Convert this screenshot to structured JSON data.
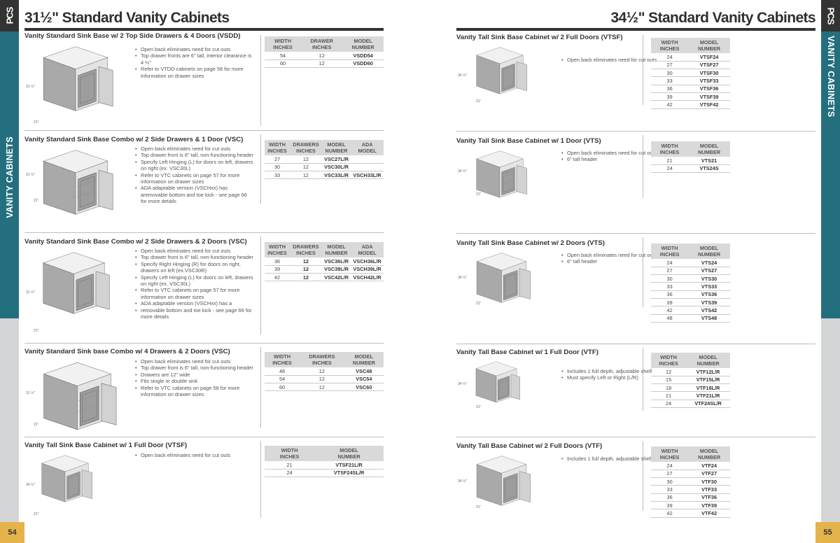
{
  "sidebar": {
    "logo": "PCS",
    "section": "VANITY CABINETS"
  },
  "left_page": {
    "title": "31½\" Standard Vanity Cabinets",
    "page_number": "54",
    "sections": [
      {
        "title": "Vanity Standard Sink Base w/ 2 Top Side Drawers & 4 Doors (VSDD)",
        "height_label": "31 ½\"",
        "depth_label": "21\"",
        "bullets": [
          "Open back eliminates need for cut outs",
          "Top drawer fronts are 6\" tall, interior clearance is 4 ¼\"",
          "Refer to VTDD cabinets on page 58 for more information on drawer sizes"
        ],
        "headers": [
          "WIDTH\nINCHES",
          "DRAWER\nINCHES",
          "MODEL\nNUMBER"
        ],
        "rows": [
          [
            "54",
            "12",
            "VSDD54"
          ],
          [
            "60",
            "12",
            "VSDD60"
          ]
        ]
      },
      {
        "title": "Vanity Standard Sink Base Combo w/ 2 Side Drawers & 1 Door (VSC)",
        "height_label": "31 ½\"",
        "depth_label": "21\"",
        "bullets": [
          "Open back eliminates need for cut outs",
          "Top drawer front is 6\" tall, non-functioning header",
          "Specify Left Hinging (L) for doors on left, drawers on right (ex. VSC30L)",
          "Refer to VTC cabinets on page 57 for more information on drawer sizes",
          "ADA adaptable version (VSCHxx) has aremovable bottom and toe kick - see page 66 for more details"
        ],
        "headers": [
          "WIDTH\nINCHES",
          "DRAWERS\nINCHES",
          "MODEL\nNUMBER",
          "ADA\nMODEL"
        ],
        "rows": [
          [
            "27",
            "12",
            "VSC27L/R",
            ""
          ],
          [
            "30",
            "12",
            "VSC30L/R",
            ""
          ],
          [
            "33",
            "12",
            "VSC33L/R",
            "VSCH33L/R"
          ]
        ]
      },
      {
        "title": "Vanity Standard Sink Base Combo w/ 2 Side Drawers & 2 Doors (VSC)",
        "height_label": "31 ½\"",
        "depth_label": "21\"",
        "bullets": [
          "Open back eliminates need for cut outs",
          "Top drawer front is 6\" tall, non-functioning header",
          "Specify Right Hinging (R) for doors on right, drawers on left (ex.VSC30R)",
          "Specify Left Hinging (L) for doors on left, drawers on right (ex. VSC30L)",
          "Refer to VTC cabinets on page 57 for more information on drawer sizes",
          "ADA adaptable version (VSCHxx) has a",
          "removable bottom and toe kick - see page 66 for more details"
        ],
        "headers": [
          "WIDTH\nINCHES",
          "DRAWERS\nINCHES",
          "MODEL\nNUMBER",
          "ADA\nMODEL"
        ],
        "rows": [
          [
            "36",
            "12",
            "VSC36L/R",
            "VSCH36L/R"
          ],
          [
            "39",
            "12",
            "VSC39L/R",
            "VSCH39L/R"
          ],
          [
            "42",
            "12",
            "VSC42L/R",
            "VSCH42L/R"
          ]
        ]
      },
      {
        "title": "Vanity Standard Sink base Combo w/ 4 Drawers & 2 Doors (VSC)",
        "height_label": "31 ½\"",
        "depth_label": "21\"",
        "bullets": [
          "Open back eliminates need for cut outs",
          "Top drawer front is 6\" tall, non-functioning header",
          "Drawers are 12\" wide",
          "Fits single or double sink",
          "Refer to VTC cabinets on page 58 for more information on drawer sizes"
        ],
        "headers": [
          "WIDTH\nINCHES",
          "DRAWERS\nINCHES",
          "MODEL\nNUMBER"
        ],
        "rows": [
          [
            "48",
            "12",
            "VSC48"
          ],
          [
            "54",
            "12",
            "VSC54"
          ],
          [
            "60",
            "12",
            "VSC60"
          ]
        ]
      },
      {
        "title": "Vanity Tall Sink Base Cabinet w/ 1 Full Door (VTSF)",
        "height_label": "34 ½\"",
        "depth_label": "21\"",
        "bullets": [
          "Open back eliminates need for cut outs"
        ],
        "headers": [
          "WIDTH\nINCHES",
          "MODEL\nNUMBER"
        ],
        "rows": [
          [
            "21",
            "VTSF21L/R"
          ],
          [
            "24",
            "VTSF24SL/R"
          ]
        ]
      }
    ]
  },
  "right_page": {
    "title": "34½\" Standard Vanity Cabinets",
    "page_number": "55",
    "sections": [
      {
        "title": "Vanity Tall Sink Base Cabinet w/ 2 Full Doors (VTSF)",
        "height_label": "34 ½\"",
        "depth_label": "21\"",
        "bullets": [
          "Open back eliminates need for cut outs"
        ],
        "headers": [
          "WIDTH\nINCHES",
          "MODEL\nNUMBER"
        ],
        "rows": [
          [
            "24",
            "VTSF24"
          ],
          [
            "27",
            "VTSF27"
          ],
          [
            "30",
            "VTSF30"
          ],
          [
            "33",
            "VTSF33"
          ],
          [
            "36",
            "VTSF36"
          ],
          [
            "39",
            "VTSF39"
          ],
          [
            "42",
            "VTSF42"
          ]
        ]
      },
      {
        "title": "Vanity Tall Sink Base Cabinet w/ 1 Door (VTS)",
        "height_label": "34 ½\"",
        "depth_label": "21\"",
        "bullets": [
          "Open back eliminates need for cut outs",
          "6\" tall header"
        ],
        "headers": [
          "WIDTH\nINCHES",
          "MODEL\nNUMBER"
        ],
        "rows": [
          [
            "21",
            "VTS21"
          ],
          [
            "24",
            "VTS24S"
          ]
        ]
      },
      {
        "title": "Vanity Tall Sink Base Cabinet w/ 2 Doors (VTS)",
        "height_label": "34 ½\"",
        "depth_label": "21\"",
        "bullets": [
          "Open back eliminates need for cut outs",
          "6\" tall header"
        ],
        "headers": [
          "WIDTH\nINCHES",
          "MODEL\nNUMBER"
        ],
        "rows": [
          [
            "24",
            "VTS24"
          ],
          [
            "27",
            "VTS27"
          ],
          [
            "30",
            "VTS30"
          ],
          [
            "33",
            "VTS33"
          ],
          [
            "36",
            "VTS36"
          ],
          [
            "39",
            "VTS39"
          ],
          [
            "42",
            "VTS42"
          ],
          [
            "48",
            "VTS48"
          ]
        ]
      },
      {
        "title": "Vanity Tall Base Cabinet w/ 1 Full Door (VTF)",
        "height_label": "34 ½\"",
        "depth_label": "21\"",
        "bullets": [
          "Includes 1 full depth, adjustable shelf",
          "Must specify Left or Right (L/R)"
        ],
        "headers": [
          "WIDTH\nINCHES",
          "MODEL\nNUMBER"
        ],
        "rows": [
          [
            "12",
            "VTF12L/R"
          ],
          [
            "15",
            "VTF15L/R"
          ],
          [
            "18",
            "VTF18L/R"
          ],
          [
            "21",
            "VTF21L/R"
          ],
          [
            "24",
            "VTF24SL/R"
          ]
        ]
      },
      {
        "title": "Vanity Tall Base Cabinet w/ 2 Full Doors (VTF)",
        "height_label": "34 ½\"",
        "depth_label": "21\"",
        "bullets": [
          "Includes 1 full depth, adjustable shelf"
        ],
        "headers": [
          "WIDTH\nINCHES",
          "MODEL\nNUMBER"
        ],
        "rows": [
          [
            "24",
            "VTF24"
          ],
          [
            "27",
            "VTF27"
          ],
          [
            "30",
            "VTF30"
          ],
          [
            "33",
            "VTF33"
          ],
          [
            "36",
            "VTF36"
          ],
          [
            "39",
            "VTF39"
          ],
          [
            "42",
            "VTF42"
          ]
        ]
      }
    ]
  }
}
